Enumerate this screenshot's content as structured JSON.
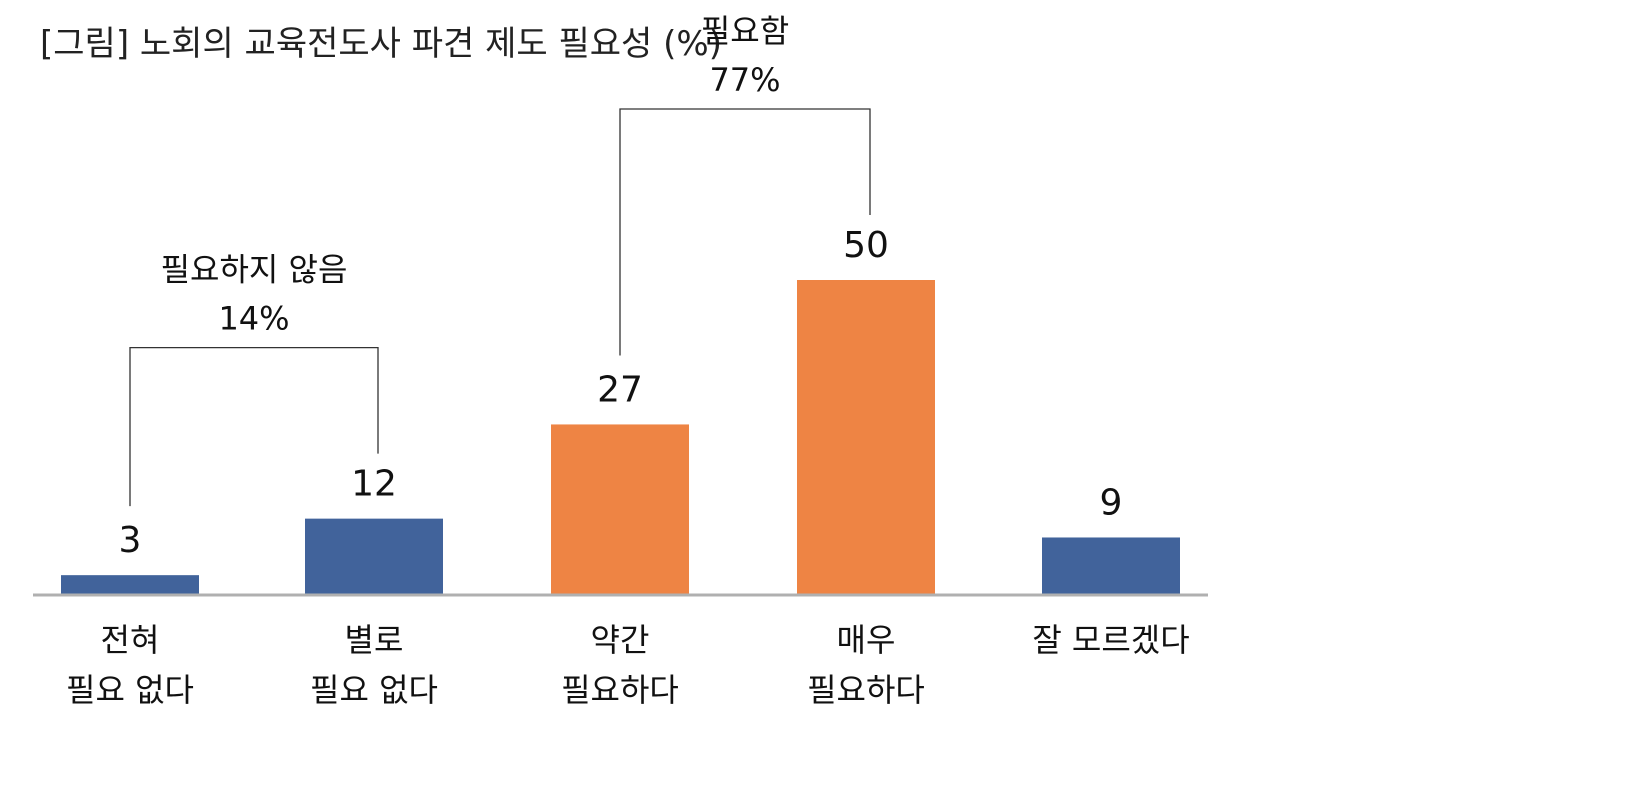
{
  "chart_data": {
    "type": "bar",
    "title": "[그림] 노회의 교육전도사 파견 제도 필요성 (%)",
    "categories": [
      [
        "전혀",
        "필요 없다"
      ],
      [
        "별로",
        "필요 없다"
      ],
      [
        "약간",
        "필요하다"
      ],
      [
        "매우",
        "필요하다"
      ],
      [
        "잘 모르겠다"
      ]
    ],
    "values": [
      3,
      12,
      27,
      50,
      9
    ],
    "bar_colors": [
      "#41639b",
      "#41639b",
      "#ee8444",
      "#ee8444",
      "#41639b"
    ],
    "ylim": [
      0,
      50
    ],
    "grid": false,
    "legend": "none",
    "groups": [
      {
        "label": "필요하지 않음",
        "value": "14%",
        "from": 0,
        "to": 1
      },
      {
        "label": "필요함",
        "value": "77%",
        "from": 2,
        "to": 3
      }
    ],
    "colors": {
      "not_needed": "#41639b",
      "needed": "#ee8444",
      "axis": "#b0b0b0"
    }
  }
}
